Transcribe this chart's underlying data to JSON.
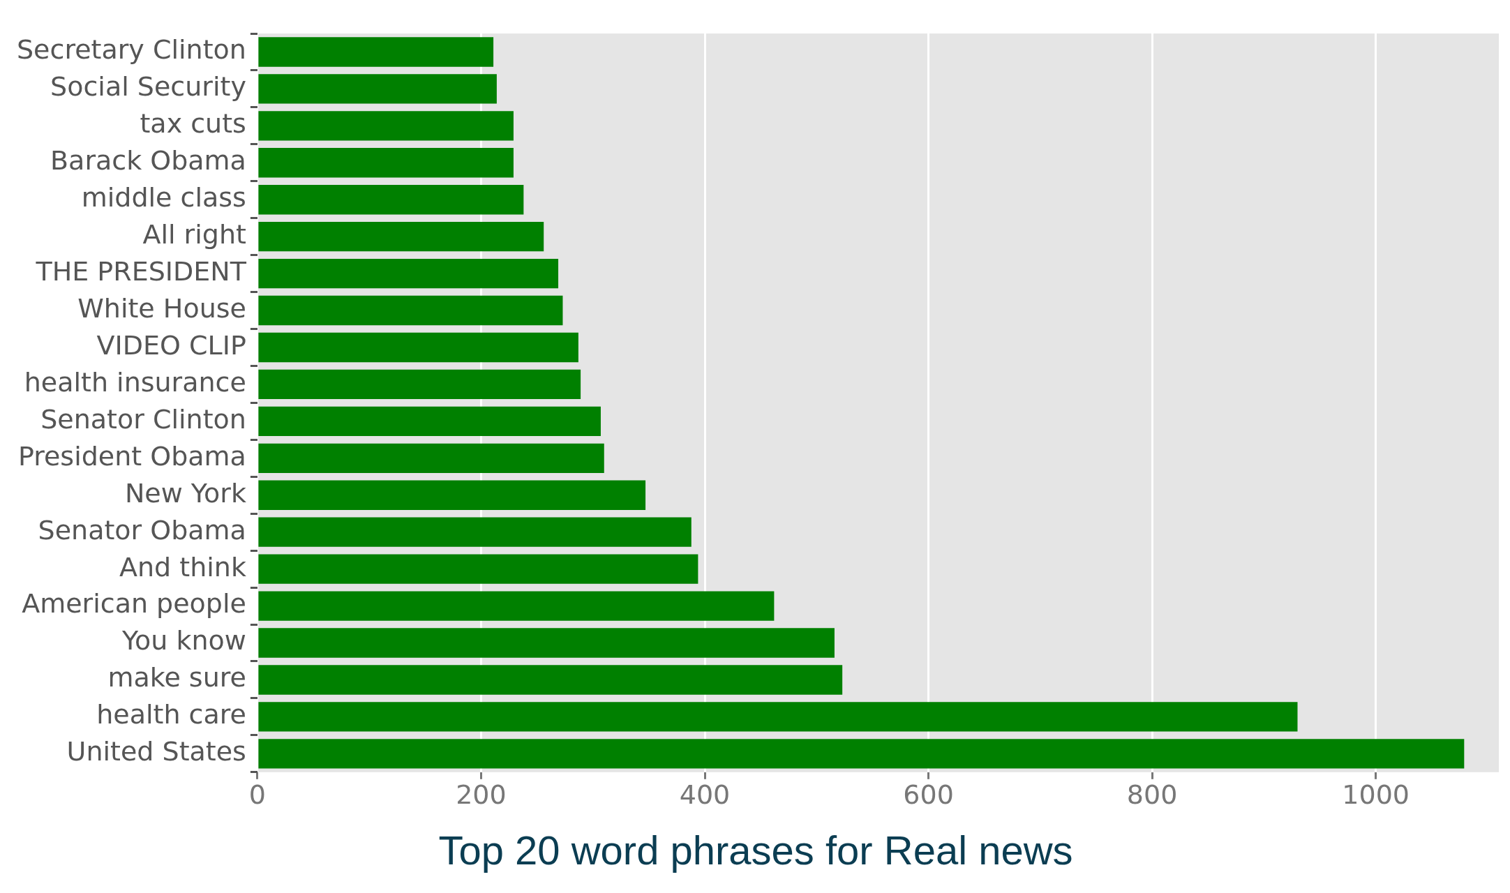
{
  "chart_data": {
    "type": "bar",
    "orientation": "horizontal",
    "title": "Top 20 word phrases for Real news",
    "categories": [
      "Secretary Clinton",
      "Social Security",
      "tax cuts",
      "Barack Obama",
      "middle class",
      "All right",
      "THE PRESIDENT",
      "White House",
      "VIDEO CLIP",
      "health insurance",
      "Senator Clinton",
      "President Obama",
      "New York",
      "Senator Obama",
      "And think",
      "American people",
      "You know",
      "make sure",
      "health care",
      "United States"
    ],
    "values": [
      211,
      214,
      229,
      229,
      238,
      256,
      269,
      273,
      287,
      289,
      307,
      310,
      347,
      388,
      394,
      462,
      516,
      523,
      930,
      1079
    ],
    "color": "#008000",
    "xlim": [
      0,
      1110
    ],
    "xticks": [
      0,
      200,
      400,
      600,
      800,
      1000
    ],
    "grid": "x",
    "legend": false
  }
}
